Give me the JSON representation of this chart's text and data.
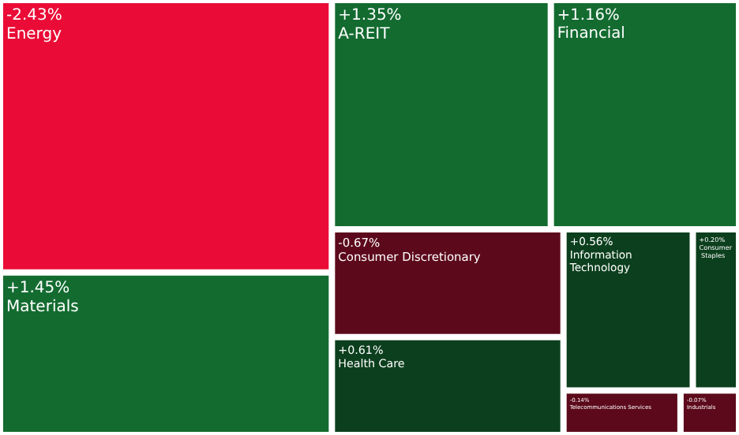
{
  "chart_data": {
    "type": "other",
    "categories": [
      "Energy",
      "Materials",
      "A-REIT",
      "Financial",
      "Consumer Discretionary",
      "Information Technology",
      "Health Care",
      "Consumer Staples",
      "Telecommunications Services",
      "Industrials"
    ],
    "values": [
      -2.43,
      1.45,
      1.35,
      1.16,
      -0.67,
      0.56,
      0.61,
      0.2,
      -0.14,
      -0.07
    ],
    "value_labels": [
      "-2.43%",
      "+1.45%",
      "+1.35%",
      "+1.16%",
      "-0.67%",
      "+0.56%",
      "+0.61%",
      "+0.20%",
      "-0.14%",
      "-0.07%"
    ],
    "colors": [
      "#ea0c36",
      "#136b30",
      "#136b30",
      "#136b30",
      "#5c0a1b",
      "#0c3f1d",
      "#0c3f1d",
      "#0c3f1d",
      "#5c0a1b",
      "#5c0a1b"
    ]
  }
}
